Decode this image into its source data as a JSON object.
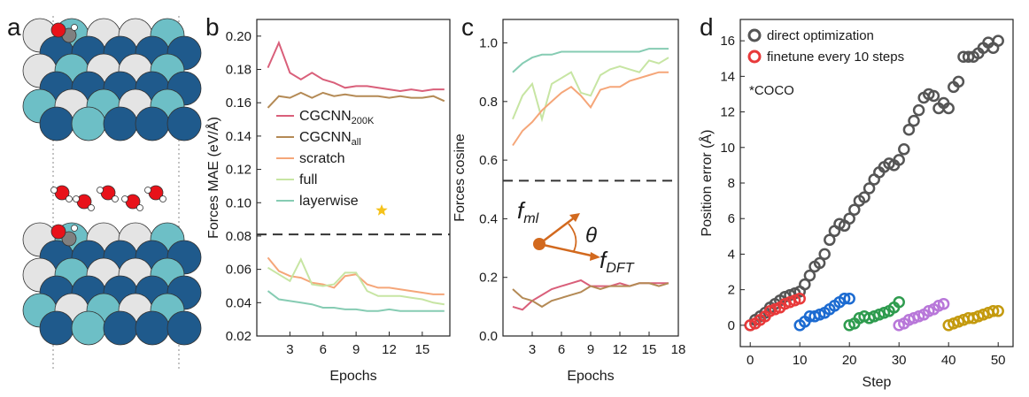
{
  "panels": {
    "a": {
      "label": "a"
    },
    "b": {
      "label": "b"
    },
    "c": {
      "label": "c"
    },
    "d": {
      "label": "d"
    }
  },
  "atoms": {
    "colors": {
      "dark_blue": "#1f5a8c",
      "light_teal": "#6dbfc6",
      "light_gray": "#e4e4e4",
      "oxygen": "#e8121a",
      "carbon": "#808080",
      "hydrogen": "#ffffff"
    }
  },
  "chart_data": [
    {
      "panel": "b",
      "type": "line",
      "xlabel": "Epochs",
      "ylabel": "Forces MAE (eV/Å)",
      "xlim": [
        0,
        17.5
      ],
      "ylim": [
        0.02,
        0.21
      ],
      "xticks": [
        3,
        6,
        9,
        12,
        15
      ],
      "yticks": [
        0.02,
        0.04,
        0.06,
        0.08,
        0.1,
        0.12,
        0.14,
        0.16,
        0.18,
        0.2
      ],
      "ytick_labels": [
        "0.02",
        "0.04",
        "0.06",
        "0.08",
        "0.10",
        "0.12",
        "0.14",
        "0.16",
        "0.18",
        "0.20"
      ],
      "reference_line": 0.081,
      "x": [
        1,
        2,
        3,
        4,
        5,
        6,
        7,
        8,
        9,
        10,
        11,
        12,
        13,
        14,
        15,
        16,
        17
      ],
      "series": [
        {
          "key": "cgcnn200k",
          "name": "CGCNN",
          "sub": "200K",
          "color": "#d95f7a",
          "values": [
            0.181,
            0.196,
            0.178,
            0.174,
            0.178,
            0.174,
            0.172,
            0.169,
            0.17,
            0.17,
            0.169,
            0.168,
            0.167,
            0.168,
            0.167,
            0.168,
            0.168
          ]
        },
        {
          "key": "cgcnnall",
          "name": "CGCNN",
          "sub": "all",
          "color": "#b48a55",
          "values": [
            0.157,
            0.164,
            0.163,
            0.166,
            0.163,
            0.166,
            0.164,
            0.165,
            0.164,
            0.164,
            0.164,
            0.163,
            0.164,
            0.163,
            0.163,
            0.164,
            0.161
          ]
        },
        {
          "key": "scratch",
          "name": "scratch",
          "sub": "",
          "color": "#f5a679",
          "values": [
            0.067,
            0.059,
            0.056,
            0.055,
            0.052,
            0.051,
            0.049,
            0.056,
            0.057,
            0.051,
            0.049,
            0.049,
            0.048,
            0.047,
            0.046,
            0.045,
            0.045
          ]
        },
        {
          "key": "full",
          "name": "full",
          "sub": "",
          "color": "#c7e5a3",
          "values": [
            0.061,
            0.057,
            0.053,
            0.066,
            0.051,
            0.05,
            0.051,
            0.058,
            0.058,
            0.047,
            0.044,
            0.044,
            0.044,
            0.043,
            0.042,
            0.04,
            0.039
          ]
        },
        {
          "key": "layerwise",
          "name": "layerwise",
          "sub": "",
          "color": "#86ccb3",
          "values": [
            0.047,
            0.042,
            0.041,
            0.04,
            0.039,
            0.037,
            0.037,
            0.036,
            0.036,
            0.035,
            0.035,
            0.036,
            0.035,
            0.035,
            0.035,
            0.035,
            0.035
          ]
        }
      ],
      "legend_marker": "star",
      "legend_marker_color": "#f5c21a"
    },
    {
      "panel": "c",
      "type": "line",
      "xlabel": "Epochs",
      "ylabel": "Forces cosine",
      "xlim": [
        0,
        18
      ],
      "ylim": [
        0,
        1.08
      ],
      "xticks": [
        3,
        6,
        9,
        12,
        15,
        18
      ],
      "yticks": [
        0.0,
        0.2,
        0.4,
        0.6,
        0.8,
        1.0
      ],
      "ytick_labels": [
        "0.0",
        "0.2",
        "0.4",
        "0.6",
        "0.8",
        "1.0"
      ],
      "reference_line": 0.53,
      "x": [
        1,
        2,
        3,
        4,
        5,
        6,
        7,
        8,
        9,
        10,
        11,
        12,
        13,
        14,
        15,
        16,
        17
      ],
      "series": [
        {
          "key": "layerwise_top",
          "color": "#86ccb3",
          "values": [
            0.9,
            0.93,
            0.95,
            0.96,
            0.96,
            0.97,
            0.97,
            0.97,
            0.97,
            0.97,
            0.97,
            0.97,
            0.97,
            0.97,
            0.98,
            0.98,
            0.98
          ]
        },
        {
          "key": "full_top",
          "color": "#c7e5a3",
          "values": [
            0.74,
            0.82,
            0.86,
            0.74,
            0.86,
            0.88,
            0.9,
            0.83,
            0.82,
            0.89,
            0.91,
            0.92,
            0.91,
            0.9,
            0.94,
            0.93,
            0.95
          ]
        },
        {
          "key": "scratch_top",
          "color": "#f5a679",
          "values": [
            0.65,
            0.7,
            0.73,
            0.77,
            0.8,
            0.83,
            0.85,
            0.82,
            0.78,
            0.84,
            0.85,
            0.85,
            0.87,
            0.88,
            0.89,
            0.9,
            0.9
          ]
        },
        {
          "key": "cgcnn200k_bottom",
          "color": "#d95f7a",
          "values": [
            0.1,
            0.09,
            0.12,
            0.14,
            0.16,
            0.17,
            0.18,
            0.19,
            0.17,
            0.17,
            0.17,
            0.18,
            0.17,
            0.18,
            0.18,
            0.18,
            0.18
          ]
        },
        {
          "key": "cgcnnall_bottom",
          "color": "#b48a55",
          "values": [
            0.16,
            0.13,
            0.12,
            0.1,
            0.12,
            0.13,
            0.14,
            0.15,
            0.17,
            0.16,
            0.17,
            0.17,
            0.17,
            0.18,
            0.18,
            0.17,
            0.18
          ]
        }
      ],
      "inset": {
        "f_ml": "f",
        "f_ml_sub": "ml",
        "f_dft": "f",
        "f_dft_sub": "DFT",
        "theta": "θ",
        "color": "#d2691e"
      }
    },
    {
      "panel": "d",
      "type": "scatter",
      "xlabel": "Step",
      "ylabel": "Position error (Å)",
      "xlim": [
        -2,
        53
      ],
      "ylim": [
        -1.2,
        17.2
      ],
      "xticks": [
        0,
        10,
        20,
        30,
        40,
        50
      ],
      "yticks": [
        0,
        2,
        4,
        6,
        8,
        10,
        12,
        14,
        16
      ],
      "annotation": "*COCO",
      "legend": [
        {
          "name": "direct optimization",
          "color": "#555555"
        },
        {
          "name": "finetune every 10 steps",
          "color": "#e8393a"
        }
      ],
      "direct": {
        "color": "#555555",
        "x": [
          0,
          1,
          2,
          3,
          4,
          5,
          6,
          7,
          8,
          9,
          10,
          11,
          12,
          13,
          14,
          15,
          16,
          17,
          18,
          19,
          20,
          21,
          22,
          23,
          24,
          25,
          26,
          27,
          28,
          29,
          30,
          31,
          32,
          33,
          34,
          35,
          36,
          37,
          38,
          39,
          40,
          41,
          42,
          43,
          44,
          45,
          46,
          47,
          48,
          49,
          50
        ],
        "y": [
          0.0,
          0.3,
          0.5,
          0.7,
          1.0,
          1.2,
          1.4,
          1.6,
          1.7,
          1.8,
          1.9,
          2.3,
          2.8,
          3.3,
          3.5,
          4.0,
          4.8,
          5.3,
          5.7,
          5.6,
          6.0,
          6.5,
          7.0,
          7.2,
          7.7,
          8.2,
          8.6,
          8.9,
          9.1,
          9.0,
          9.3,
          9.9,
          11.0,
          11.5,
          12.1,
          12.8,
          13.0,
          12.9,
          12.2,
          12.5,
          12.2,
          13.4,
          13.7,
          15.1,
          15.1,
          15.1,
          15.3,
          15.6,
          15.9,
          15.6,
          16.0
        ]
      },
      "finetune": [
        {
          "color": "#e8393a",
          "x": [
            0,
            1,
            2,
            3,
            4,
            5,
            6,
            7,
            8,
            9,
            10
          ],
          "y": [
            0.0,
            0.1,
            0.3,
            0.5,
            0.8,
            0.9,
            1.0,
            1.2,
            1.3,
            1.4,
            1.5
          ]
        },
        {
          "color": "#1c6bd1",
          "x": [
            10,
            11,
            12,
            13,
            14,
            15,
            16,
            17,
            18,
            19,
            20
          ],
          "y": [
            0.0,
            0.2,
            0.5,
            0.5,
            0.6,
            0.7,
            0.9,
            1.1,
            1.3,
            1.5,
            1.5
          ]
        },
        {
          "color": "#2e9b4e",
          "x": [
            20,
            21,
            22,
            23,
            24,
            25,
            26,
            27,
            28,
            29,
            30
          ],
          "y": [
            0.0,
            0.1,
            0.4,
            0.5,
            0.4,
            0.5,
            0.6,
            0.7,
            0.8,
            1.0,
            1.3
          ]
        },
        {
          "color": "#b877d9",
          "x": [
            30,
            31,
            32,
            33,
            34,
            35,
            36,
            37,
            38,
            39
          ],
          "y": [
            0.0,
            0.1,
            0.3,
            0.4,
            0.5,
            0.6,
            0.8,
            0.9,
            1.1,
            1.2
          ]
        },
        {
          "color": "#c49a0e",
          "x": [
            40,
            41,
            42,
            43,
            44,
            45,
            46,
            47,
            48,
            49,
            50
          ],
          "y": [
            0.0,
            0.1,
            0.2,
            0.3,
            0.4,
            0.4,
            0.5,
            0.6,
            0.7,
            0.8,
            0.8
          ]
        }
      ]
    }
  ]
}
